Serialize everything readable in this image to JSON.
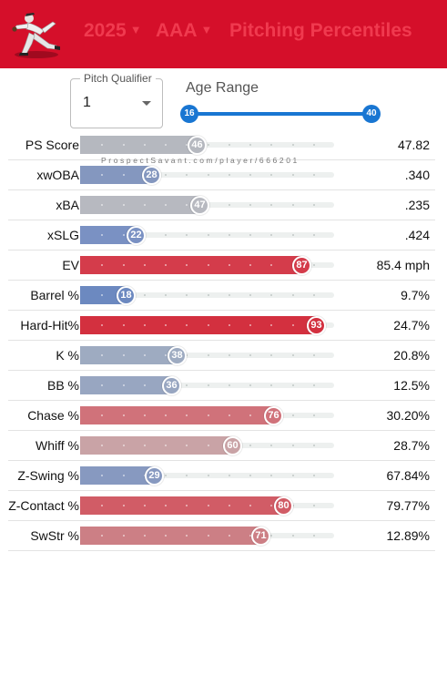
{
  "header": {
    "season": "2025",
    "level": "AAA",
    "title": "Pitching Percentiles",
    "logo_icon": "pitcher-logo-icon",
    "background": "#d50f2a"
  },
  "controls": {
    "pitch_qualifier_label": "Pitch Qualifier",
    "pitch_qualifier_value": "1",
    "age_range_label": "Age Range",
    "age_min": "16",
    "age_max": "40"
  },
  "watermark": "ProspectSavant.com/player/666201",
  "metrics": [
    {
      "label": "PS Score",
      "percentile": 46,
      "value": "47.82",
      "color": "#b5b8bf"
    },
    {
      "label": "xwOBA",
      "percentile": 28,
      "value": ".340",
      "color": "#8497bf"
    },
    {
      "label": "xBA",
      "percentile": 47,
      "value": ".235",
      "color": "#b7b9c0"
    },
    {
      "label": "xSLG",
      "percentile": 22,
      "value": ".424",
      "color": "#7a91c3"
    },
    {
      "label": "EV",
      "percentile": 87,
      "value": "85.4 mph",
      "color": "#d43c4b"
    },
    {
      "label": "Barrel %",
      "percentile": 18,
      "value": "9.7%",
      "color": "#6c89c0"
    },
    {
      "label": "Hard-Hit%",
      "percentile": 93,
      "value": "24.7%",
      "color": "#d3303f"
    },
    {
      "label": "K %",
      "percentile": 38,
      "value": "20.8%",
      "color": "#9eabc1"
    },
    {
      "label": "BB %",
      "percentile": 36,
      "value": "12.5%",
      "color": "#98a6c1"
    },
    {
      "label": "Chase %",
      "percentile": 76,
      "value": "30.20%",
      "color": "#d0727a"
    },
    {
      "label": "Whiff %",
      "percentile": 60,
      "value": "28.7%",
      "color": "#c9a3a6"
    },
    {
      "label": "Z-Swing %",
      "percentile": 29,
      "value": "67.84%",
      "color": "#8799c0"
    },
    {
      "label": "Z-Contact %",
      "percentile": 80,
      "value": "79.77%",
      "color": "#d15c66"
    },
    {
      "label": "SwStr %",
      "percentile": 71,
      "value": "12.89%",
      "color": "#cc7f85"
    }
  ]
}
